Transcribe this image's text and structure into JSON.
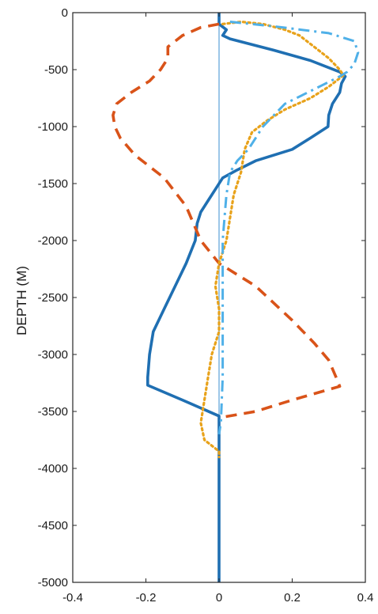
{
  "chart_data": {
    "type": "line",
    "title": "",
    "xlabel": "",
    "ylabel": "DEPTH (M)",
    "xlim": [
      -0.4,
      0.4
    ],
    "ylim": [
      -5000,
      0
    ],
    "grid": false,
    "legend": "none",
    "x_ticks": [
      -0.4,
      -0.2,
      0,
      0.2,
      0.4
    ],
    "x_tick_labels": [
      "-0.4",
      "-0.2",
      "0",
      "0.2",
      "0.4"
    ],
    "y_ticks": [
      0,
      -500,
      -1000,
      -1500,
      -2000,
      -2500,
      -3000,
      -3500,
      -4000,
      -4500,
      -5000
    ],
    "y_tick_labels": [
      "0",
      "-500",
      "-1000",
      "-1500",
      "-2000",
      "-2500",
      "-3000",
      "-3500",
      "-4000",
      "-4500",
      "-5000"
    ],
    "zero_line": {
      "x": 0,
      "color": "#9cc7e8"
    },
    "series": [
      {
        "style": "solid",
        "color": "#1f6fb2",
        "points": [
          [
            0,
            0
          ],
          [
            0,
            -100
          ],
          [
            0.02,
            -150
          ],
          [
            0.01,
            -200
          ],
          [
            0.03,
            -230
          ],
          [
            0.15,
            -330
          ],
          [
            0.25,
            -420
          ],
          [
            0.33,
            -520
          ],
          [
            0.345,
            -560
          ],
          [
            0.335,
            -620
          ],
          [
            0.33,
            -700
          ],
          [
            0.31,
            -800
          ],
          [
            0.3,
            -900
          ],
          [
            0.298,
            -1000
          ],
          [
            0.25,
            -1100
          ],
          [
            0.2,
            -1200
          ],
          [
            0.1,
            -1300
          ],
          [
            0.05,
            -1380
          ],
          [
            0.01,
            -1450
          ],
          [
            -0.01,
            -1550
          ],
          [
            -0.03,
            -1650
          ],
          [
            -0.05,
            -1750
          ],
          [
            -0.06,
            -1850
          ],
          [
            -0.065,
            -2000
          ],
          [
            -0.09,
            -2200
          ],
          [
            -0.12,
            -2400
          ],
          [
            -0.15,
            -2600
          ],
          [
            -0.18,
            -2800
          ],
          [
            -0.19,
            -3000
          ],
          [
            -0.195,
            -3200
          ],
          [
            -0.195,
            -3270
          ],
          [
            -0.1,
            -3400
          ],
          [
            0,
            -3540
          ],
          [
            0,
            -3600
          ],
          [
            0,
            -4000
          ],
          [
            0,
            -5000
          ]
        ]
      },
      {
        "style": "dashed",
        "color": "#d95319",
        "points": [
          [
            0,
            -100
          ],
          [
            -0.05,
            -130
          ],
          [
            -0.1,
            -200
          ],
          [
            -0.14,
            -300
          ],
          [
            -0.14,
            -400
          ],
          [
            -0.16,
            -500
          ],
          [
            -0.19,
            -600
          ],
          [
            -0.24,
            -700
          ],
          [
            -0.28,
            -800
          ],
          [
            -0.29,
            -900
          ],
          [
            -0.285,
            -1000
          ],
          [
            -0.27,
            -1100
          ],
          [
            -0.23,
            -1250
          ],
          [
            -0.15,
            -1450
          ],
          [
            -0.09,
            -1700
          ],
          [
            -0.05,
            -2000
          ],
          [
            0,
            -2200
          ],
          [
            0.05,
            -2300
          ],
          [
            0.1,
            -2400
          ],
          [
            0.15,
            -2550
          ],
          [
            0.2,
            -2700
          ],
          [
            0.26,
            -2900
          ],
          [
            0.3,
            -3050
          ],
          [
            0.32,
            -3200
          ],
          [
            0.33,
            -3280
          ],
          [
            0.2,
            -3400
          ],
          [
            0.1,
            -3500
          ],
          [
            0.01,
            -3550
          ]
        ]
      },
      {
        "style": "dotted",
        "color": "#e8a21a",
        "points": [
          [
            0.01,
            -100
          ],
          [
            0.06,
            -80
          ],
          [
            0.12,
            -100
          ],
          [
            0.18,
            -150
          ],
          [
            0.22,
            -200
          ],
          [
            0.26,
            -300
          ],
          [
            0.3,
            -400
          ],
          [
            0.33,
            -500
          ],
          [
            0.34,
            -550
          ],
          [
            0.3,
            -650
          ],
          [
            0.25,
            -750
          ],
          [
            0.18,
            -850
          ],
          [
            0.13,
            -950
          ],
          [
            0.09,
            -1050
          ],
          [
            0.07,
            -1200
          ],
          [
            0.06,
            -1400
          ],
          [
            0.04,
            -1600
          ],
          [
            0.03,
            -1800
          ],
          [
            0.02,
            -2000
          ],
          [
            0,
            -2200
          ],
          [
            -0.01,
            -2400
          ],
          [
            0,
            -2600
          ],
          [
            0,
            -2800
          ],
          [
            -0.01,
            -2900
          ],
          [
            -0.02,
            -3000
          ],
          [
            -0.03,
            -3200
          ],
          [
            -0.04,
            -3400
          ],
          [
            -0.05,
            -3600
          ],
          [
            -0.04,
            -3750
          ],
          [
            0,
            -3850
          ],
          [
            0,
            -3900
          ]
        ]
      },
      {
        "style": "dashdot",
        "color": "#4fb0e8",
        "points": [
          [
            0.03,
            -80
          ],
          [
            0.15,
            -120
          ],
          [
            0.3,
            -180
          ],
          [
            0.37,
            -250
          ],
          [
            0.38,
            -350
          ],
          [
            0.37,
            -450
          ],
          [
            0.35,
            -520
          ],
          [
            0.33,
            -560
          ],
          [
            0.28,
            -640
          ],
          [
            0.23,
            -720
          ],
          [
            0.18,
            -800
          ],
          [
            0.15,
            -900
          ],
          [
            0.12,
            -1000
          ],
          [
            0.1,
            -1100
          ],
          [
            0.08,
            -1200
          ],
          [
            0.05,
            -1300
          ],
          [
            0.03,
            -1400
          ],
          [
            0.02,
            -1600
          ],
          [
            0.015,
            -1800
          ],
          [
            0.01,
            -2000
          ],
          [
            0.01,
            -2400
          ],
          [
            0.01,
            -2800
          ],
          [
            0.01,
            -3200
          ],
          [
            0.005,
            -3600
          ],
          [
            0,
            -3700
          ]
        ]
      }
    ]
  }
}
